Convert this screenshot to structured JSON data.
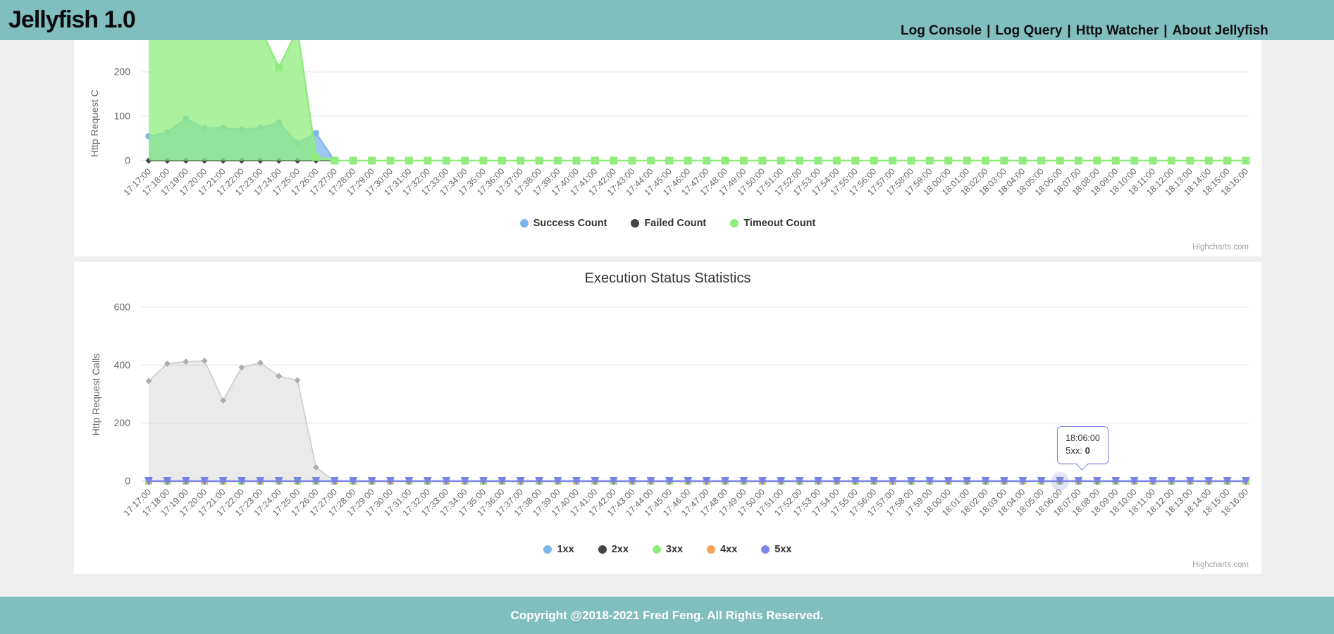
{
  "header": {
    "title": "Jellyfish 1.0",
    "separator": "|",
    "nav": [
      "Log Console",
      "Log Query",
      "Http Watcher",
      "About Jellyfish"
    ]
  },
  "credits": "Highcharts.com",
  "colors": {
    "teal_band": "#80bec0",
    "page_background": "#efefef",
    "series_blue": "#7cb5ec",
    "series_dark": "#434348",
    "series_green": "#90ed7d",
    "series_orange": "#f7a35c",
    "series_purple": "#8085e9",
    "gridline": "#e6e6e6",
    "axis_line": "#ccd6eb",
    "tick_text": "#666666"
  },
  "chart_data": [
    {
      "type": "area",
      "title": "",
      "ylabel": "Http Request C",
      "yticks": [
        0,
        100,
        200
      ],
      "legend_position": "bottom",
      "grid": true,
      "categories": [
        "17:17:00",
        "17:18:00",
        "17:19:00",
        "17:20:00",
        "17:21:00",
        "17:22:00",
        "17:23:00",
        "17:24:00",
        "17:25:00",
        "17:26:00",
        "17:27:00",
        "17:28:00",
        "17:29:00",
        "17:30:00",
        "17:31:00",
        "17:32:00",
        "17:33:00",
        "17:34:00",
        "17:35:00",
        "17:36:00",
        "17:37:00",
        "17:38:00",
        "17:39:00",
        "17:40:00",
        "17:41:00",
        "17:42:00",
        "17:43:00",
        "17:44:00",
        "17:45:00",
        "17:46:00",
        "17:47:00",
        "17:48:00",
        "17:49:00",
        "17:50:00",
        "17:51:00",
        "17:52:00",
        "17:53:00",
        "17:54:00",
        "17:55:00",
        "17:56:00",
        "17:57:00",
        "17:58:00",
        "17:59:00",
        "18:00:00",
        "18:01:00",
        "18:02:00",
        "18:03:00",
        "18:04:00",
        "18:05:00",
        "18:06:00",
        "18:07:00",
        "18:08:00",
        "18:09:00",
        "18:10:00",
        "18:11:00",
        "18:12:00",
        "18:13:00",
        "18:14:00",
        "18:15:00",
        "18:16:00"
      ],
      "series": [
        {
          "name": "Success Count",
          "color": "#7cb5ec",
          "marker": "circle",
          "msize": 4.5,
          "lw": 2,
          "line": "#7cb5ec",
          "fill": "rgba(124,181,236,0.75)",
          "values": [
            55,
            64,
            95,
            73,
            74,
            70,
            74,
            86,
            40,
            62,
            0,
            0,
            0,
            0,
            0,
            0,
            0,
            0,
            0,
            0,
            0,
            0,
            0,
            0,
            0,
            0,
            0,
            0,
            0,
            0,
            0,
            0,
            0,
            0,
            0,
            0,
            0,
            0,
            0,
            0,
            0,
            0,
            0,
            0,
            0,
            0,
            0,
            0,
            0,
            0,
            0,
            0,
            0,
            0,
            0,
            0,
            0,
            0,
            0,
            0
          ]
        },
        {
          "name": "Failed Count",
          "color": "#434348",
          "marker": "diamond",
          "msize": 4.5,
          "lw": 2,
          "line": "#434348",
          "flat": 0
        },
        {
          "name": "Timeout Count",
          "color": "#90ed7d",
          "marker": "square",
          "msize": 5.5,
          "lw": 2.5,
          "line": "#90ed7d",
          "fill": "rgba(144,237,125,0.75)",
          "values": [
            300,
            305,
            298,
            308,
            300,
            304,
            299,
            210,
            295,
            8,
            0,
            0,
            0,
            0,
            0,
            0,
            0,
            0,
            0,
            0,
            0,
            0,
            0,
            0,
            0,
            0,
            0,
            0,
            0,
            0,
            0,
            0,
            0,
            0,
            0,
            0,
            0,
            0,
            0,
            0,
            0,
            0,
            0,
            0,
            0,
            0,
            0,
            0,
            0,
            0,
            0,
            0,
            0,
            0,
            0,
            0,
            0,
            0,
            0,
            0
          ]
        }
      ]
    },
    {
      "type": "area",
      "title": "Execution Status Statistics",
      "ylabel": "Http Request Calls",
      "yticks": [
        0,
        200,
        400,
        600
      ],
      "legend_position": "bottom",
      "grid": true,
      "categories": [
        "17:17:00",
        "17:18:00",
        "17:19:00",
        "17:20:00",
        "17:21:00",
        "17:22:00",
        "17:23:00",
        "17:24:00",
        "17:25:00",
        "17:26:00",
        "17:27:00",
        "17:28:00",
        "17:29:00",
        "17:30:00",
        "17:31:00",
        "17:32:00",
        "17:33:00",
        "17:34:00",
        "17:35:00",
        "17:36:00",
        "17:37:00",
        "17:38:00",
        "17:39:00",
        "17:40:00",
        "17:41:00",
        "17:42:00",
        "17:43:00",
        "17:44:00",
        "17:45:00",
        "17:46:00",
        "17:47:00",
        "17:48:00",
        "17:49:00",
        "17:50:00",
        "17:51:00",
        "17:52:00",
        "17:53:00",
        "17:54:00",
        "17:55:00",
        "17:56:00",
        "17:57:00",
        "17:58:00",
        "17:59:00",
        "18:00:00",
        "18:01:00",
        "18:02:00",
        "18:03:00",
        "18:04:00",
        "18:05:00",
        "18:06:00",
        "18:07:00",
        "18:08:00",
        "18:09:00",
        "18:10:00",
        "18:11:00",
        "18:12:00",
        "18:13:00",
        "18:14:00",
        "18:15:00",
        "18:16:00"
      ],
      "series": [
        {
          "name": "1xx",
          "color": "#7cb5ec",
          "marker": "circle",
          "msize": 4,
          "lw": 2,
          "line": "#7cb5ec",
          "flat": 0
        },
        {
          "name": "2xx",
          "color": "#434348",
          "marker": "diamond",
          "msize": 4.5,
          "lw": 1.5,
          "line": "#c9c9c9",
          "marker_color": "#adadad",
          "fill": "rgba(140,140,145,0.18)",
          "values": [
            345,
            405,
            412,
            415,
            278,
            392,
            408,
            362,
            348,
            47,
            0,
            0,
            0,
            0,
            0,
            0,
            0,
            0,
            0,
            0,
            0,
            0,
            0,
            0,
            0,
            0,
            0,
            0,
            0,
            0,
            0,
            0,
            0,
            0,
            0,
            0,
            0,
            0,
            0,
            0,
            0,
            0,
            0,
            0,
            0,
            0,
            0,
            0,
            0,
            0,
            0,
            0,
            0,
            0,
            0,
            0,
            0,
            0,
            0,
            0
          ]
        },
        {
          "name": "3xx",
          "color": "#90ed7d",
          "marker": "square",
          "msize": 5,
          "lw": 2,
          "line": "#90ed7d",
          "flat": 0
        },
        {
          "name": "4xx",
          "color": "#f7a35c",
          "marker": "triangle",
          "msize": 4,
          "lw": 2,
          "line": "#f7a35c",
          "flat": 0
        },
        {
          "name": "5xx",
          "color": "#8085e9",
          "marker": "triangle-down",
          "msize": 6,
          "lw": 2.5,
          "line": "#8085e9",
          "marker_color": "#7b80e8",
          "flat": 0
        }
      ],
      "tooltip": {
        "time": "18:06:00",
        "label": "5xx:",
        "value": "0"
      }
    }
  ],
  "footer": {
    "copyright": "Copyright @2018-2021 Fred Feng. All Rights Reserved."
  }
}
